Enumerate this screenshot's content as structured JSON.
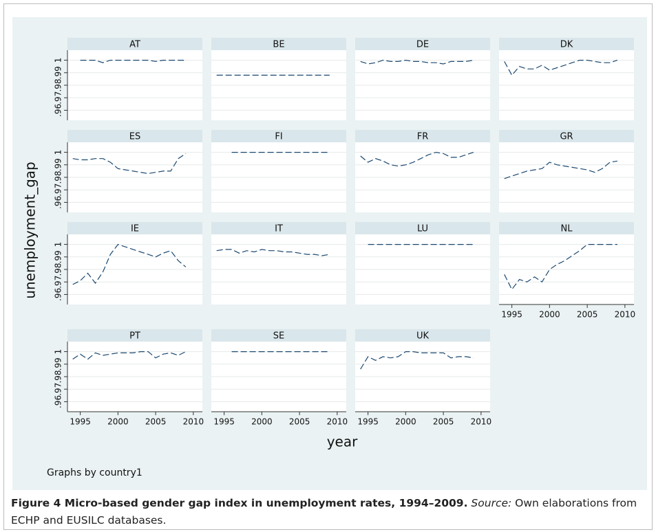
{
  "chart_data": {
    "type": "line",
    "y_label": "unemployment_gap",
    "x_label": "year",
    "note": "Graphs by country1",
    "color": "#1a476f",
    "grid": true,
    "x": [
      1994,
      1995,
      1996,
      1997,
      1998,
      1999,
      2000,
      2001,
      2002,
      2003,
      2004,
      2005,
      2006,
      2007,
      2008,
      2009
    ],
    "xlim": [
      1993.3,
      2011.2
    ],
    "xticks": [
      1995,
      2000,
      2005,
      2010
    ],
    "ylim": [
      0.952,
      1.008
    ],
    "yticks": [
      {
        "value": 0.96,
        "label": ".96"
      },
      {
        "value": 0.97,
        "label": ".97"
      },
      {
        "value": 0.98,
        "label": ".98"
      },
      {
        "value": 0.99,
        "label": ".99"
      },
      1
    ],
    "panels": [
      {
        "name": "AT",
        "values": [
          null,
          1.0,
          1.0,
          1.0,
          0.998,
          1.0,
          1.0,
          1.0,
          1.0,
          1.0,
          1.0,
          0.999,
          1.0,
          1.0,
          1.0,
          1.0
        ]
      },
      {
        "name": "BE",
        "values": [
          0.988,
          0.988,
          0.988,
          0.988,
          0.988,
          0.988,
          0.988,
          0.988,
          0.988,
          0.988,
          0.988,
          0.988,
          0.988,
          0.988,
          0.988,
          0.988
        ]
      },
      {
        "name": "DE",
        "values": [
          0.999,
          0.997,
          0.998,
          1.0,
          0.999,
          0.999,
          1.0,
          0.999,
          0.999,
          0.998,
          0.998,
          0.997,
          0.999,
          0.999,
          0.999,
          1.0
        ]
      },
      {
        "name": "DK",
        "values": [
          0.999,
          0.988,
          0.995,
          0.993,
          0.993,
          0.996,
          0.992,
          0.994,
          0.996,
          0.998,
          1.0,
          1.0,
          0.999,
          0.998,
          0.998,
          1.0
        ]
      },
      {
        "name": "ES",
        "values": [
          0.995,
          0.994,
          0.994,
          0.995,
          0.995,
          0.992,
          0.987,
          0.986,
          0.985,
          0.984,
          0.983,
          0.984,
          0.985,
          0.985,
          0.995,
          0.999
        ]
      },
      {
        "name": "FI",
        "values": [
          null,
          null,
          1.0,
          1.0,
          1.0,
          1.0,
          1.0,
          1.0,
          1.0,
          1.0,
          1.0,
          1.0,
          1.0,
          1.0,
          1.0,
          1.0
        ]
      },
      {
        "name": "FR",
        "values": [
          0.997,
          0.992,
          0.995,
          0.993,
          0.99,
          0.989,
          0.99,
          0.992,
          0.995,
          0.998,
          1.0,
          0.999,
          0.996,
          0.996,
          0.998,
          1.0
        ]
      },
      {
        "name": "GR",
        "values": [
          0.979,
          0.981,
          0.983,
          0.985,
          0.986,
          0.987,
          0.992,
          0.99,
          0.989,
          0.988,
          0.987,
          0.986,
          0.984,
          0.987,
          0.992,
          0.993
        ]
      },
      {
        "name": "IE",
        "values": [
          0.968,
          0.971,
          0.977,
          0.969,
          0.978,
          0.992,
          1.0,
          0.998,
          0.996,
          0.994,
          0.992,
          0.99,
          0.993,
          0.995,
          0.987,
          0.982
        ]
      },
      {
        "name": "IT",
        "values": [
          0.995,
          0.996,
          0.996,
          0.993,
          0.995,
          0.994,
          0.996,
          0.995,
          0.995,
          0.994,
          0.994,
          0.993,
          0.992,
          0.992,
          0.991,
          0.992
        ]
      },
      {
        "name": "LU",
        "values": [
          null,
          1.0,
          1.0,
          1.0,
          1.0,
          1.0,
          1.0,
          1.0,
          1.0,
          1.0,
          1.0,
          1.0,
          1.0,
          1.0,
          1.0,
          1.0
        ]
      },
      {
        "name": "NL",
        "values": [
          0.976,
          0.964,
          0.972,
          0.97,
          0.974,
          0.97,
          0.98,
          0.984,
          0.987,
          0.991,
          0.995,
          1.0,
          1.0,
          1.0,
          1.0,
          1.0
        ]
      },
      {
        "name": "PT",
        "values": [
          0.994,
          0.998,
          0.994,
          0.999,
          0.997,
          0.998,
          0.999,
          0.999,
          0.999,
          1.0,
          1.0,
          0.995,
          0.998,
          0.999,
          0.997,
          1.0
        ]
      },
      {
        "name": "SE",
        "values": [
          null,
          null,
          1.0,
          1.0,
          1.0,
          1.0,
          1.0,
          1.0,
          1.0,
          1.0,
          1.0,
          1.0,
          1.0,
          1.0,
          1.0,
          1.0
        ]
      },
      {
        "name": "UK",
        "values": [
          0.986,
          0.996,
          0.993,
          0.996,
          0.995,
          0.996,
          1.0,
          1.0,
          0.999,
          0.999,
          0.999,
          0.999,
          0.995,
          0.996,
          0.996,
          0.995
        ]
      }
    ]
  },
  "caption": {
    "title": "Figure 4 Micro-based gender gap index in unemployment rates, 1994–2009.",
    "source_label": "Source:",
    "source_text": "Own elaborations from ECHP and EUSILC databases."
  }
}
